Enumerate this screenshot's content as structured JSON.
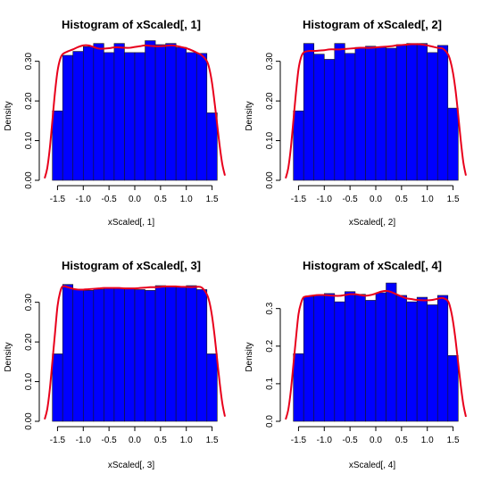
{
  "figure": {
    "background": "#ffffff"
  },
  "chart_data": [
    {
      "type": "bar",
      "title": "Histogram of xScaled[, 1]",
      "xlabel": "xScaled[, 1]",
      "ylabel": "Density",
      "xlim": [
        -1.75,
        1.75
      ],
      "ylim": [
        0,
        0.36
      ],
      "x_ticks": [
        -1.5,
        -1.0,
        -0.5,
        0.0,
        0.5,
        1.0,
        1.5
      ],
      "x_tick_labels": [
        "-1.5",
        "-1.0",
        "-0.5",
        "0.0",
        "0.5",
        "1.0",
        "1.5"
      ],
      "y_ticks": [
        0.0,
        0.1,
        0.2,
        0.3
      ],
      "y_tick_labels": [
        "0.00",
        "0.10",
        "0.20",
        "0.30"
      ],
      "bin_edges": [
        -1.6,
        -1.4,
        -1.2,
        -1.0,
        -0.8,
        -0.6,
        -0.4,
        -0.2,
        0.0,
        0.2,
        0.4,
        0.6,
        0.8,
        1.0,
        1.2,
        1.4,
        1.6
      ],
      "values": [
        0.175,
        0.315,
        0.325,
        0.337,
        0.345,
        0.322,
        0.345,
        0.322,
        0.322,
        0.352,
        0.342,
        0.345,
        0.335,
        0.322,
        0.32,
        0.17
      ],
      "density_line": {
        "x": [
          -1.75,
          -1.7,
          -1.65,
          -1.6,
          -1.55,
          -1.5,
          -1.45,
          -1.4,
          -1.3,
          -1.2,
          -1.1,
          -1.0,
          -0.9,
          -0.8,
          -0.7,
          -0.6,
          -0.5,
          -0.4,
          -0.3,
          -0.2,
          -0.1,
          0.0,
          0.1,
          0.2,
          0.3,
          0.4,
          0.5,
          0.6,
          0.7,
          0.8,
          0.9,
          1.0,
          1.1,
          1.2,
          1.3,
          1.4,
          1.45,
          1.5,
          1.55,
          1.6,
          1.65,
          1.7,
          1.75
        ],
        "y": [
          0.005,
          0.03,
          0.08,
          0.15,
          0.22,
          0.275,
          0.305,
          0.318,
          0.325,
          0.33,
          0.336,
          0.34,
          0.34,
          0.336,
          0.332,
          0.332,
          0.333,
          0.335,
          0.335,
          0.334,
          0.334,
          0.336,
          0.338,
          0.34,
          0.339,
          0.338,
          0.338,
          0.339,
          0.34,
          0.339,
          0.336,
          0.333,
          0.328,
          0.322,
          0.315,
          0.3,
          0.28,
          0.245,
          0.195,
          0.14,
          0.085,
          0.04,
          0.012
        ]
      },
      "bar_color": "#0000ff",
      "line_color": "#e8001c"
    },
    {
      "type": "bar",
      "title": "Histogram of xScaled[, 2]",
      "xlabel": "xScaled[, 2]",
      "ylabel": "Density",
      "xlim": [
        -1.75,
        1.75
      ],
      "ylim": [
        0,
        0.36
      ],
      "x_ticks": [
        -1.5,
        -1.0,
        -0.5,
        0.0,
        0.5,
        1.0,
        1.5
      ],
      "x_tick_labels": [
        "-1.5",
        "-1.0",
        "-0.5",
        "0.0",
        "0.5",
        "1.0",
        "1.5"
      ],
      "y_ticks": [
        0.0,
        0.1,
        0.2,
        0.3
      ],
      "y_tick_labels": [
        "0.00",
        "0.10",
        "0.20",
        "0.30"
      ],
      "bin_edges": [
        -1.6,
        -1.4,
        -1.2,
        -1.0,
        -0.8,
        -0.6,
        -0.4,
        -0.2,
        0.0,
        0.2,
        0.4,
        0.6,
        0.8,
        1.0,
        1.2,
        1.4,
        1.6
      ],
      "values": [
        0.175,
        0.345,
        0.318,
        0.305,
        0.345,
        0.32,
        0.335,
        0.338,
        0.335,
        0.333,
        0.342,
        0.345,
        0.345,
        0.322,
        0.34,
        0.182
      ],
      "density_line": {
        "x": [
          -1.75,
          -1.7,
          -1.65,
          -1.6,
          -1.55,
          -1.5,
          -1.45,
          -1.4,
          -1.3,
          -1.2,
          -1.1,
          -1.0,
          -0.9,
          -0.8,
          -0.7,
          -0.6,
          -0.5,
          -0.4,
          -0.3,
          -0.2,
          -0.1,
          0.0,
          0.1,
          0.2,
          0.3,
          0.4,
          0.5,
          0.6,
          0.7,
          0.8,
          0.9,
          1.0,
          1.1,
          1.2,
          1.3,
          1.4,
          1.45,
          1.5,
          1.55,
          1.6,
          1.65,
          1.7,
          1.75
        ],
        "y": [
          0.005,
          0.03,
          0.08,
          0.15,
          0.22,
          0.28,
          0.31,
          0.322,
          0.326,
          0.326,
          0.327,
          0.328,
          0.33,
          0.33,
          0.33,
          0.331,
          0.332,
          0.333,
          0.334,
          0.334,
          0.334,
          0.335,
          0.336,
          0.337,
          0.338,
          0.34,
          0.341,
          0.342,
          0.343,
          0.343,
          0.342,
          0.34,
          0.337,
          0.334,
          0.332,
          0.318,
          0.3,
          0.27,
          0.225,
          0.165,
          0.1,
          0.045,
          0.012
        ]
      },
      "bar_color": "#0000ff",
      "line_color": "#e8001c"
    },
    {
      "type": "bar",
      "title": "Histogram of xScaled[, 3]",
      "xlabel": "xScaled[, 3]",
      "ylabel": "Density",
      "xlim": [
        -1.75,
        1.75
      ],
      "ylim": [
        0,
        0.36
      ],
      "x_ticks": [
        -1.5,
        -1.0,
        -0.5,
        0.0,
        0.5,
        1.0,
        1.5
      ],
      "x_tick_labels": [
        "-1.5",
        "-1.0",
        "-0.5",
        "0.0",
        "0.5",
        "1.0",
        "1.5"
      ],
      "y_ticks": [
        0.0,
        0.1,
        0.2,
        0.3
      ],
      "y_tick_labels": [
        "0.00",
        "0.10",
        "0.20",
        "0.30"
      ],
      "bin_edges": [
        -1.6,
        -1.4,
        -1.2,
        -1.0,
        -0.8,
        -0.6,
        -0.4,
        -0.2,
        0.0,
        0.2,
        0.4,
        0.6,
        0.8,
        1.0,
        1.2,
        1.4,
        1.6
      ],
      "values": [
        0.17,
        0.345,
        0.332,
        0.33,
        0.333,
        0.336,
        0.336,
        0.336,
        0.332,
        0.33,
        0.342,
        0.34,
        0.338,
        0.342,
        0.332,
        0.17
      ],
      "density_line": {
        "x": [
          -1.75,
          -1.7,
          -1.65,
          -1.6,
          -1.55,
          -1.5,
          -1.45,
          -1.4,
          -1.3,
          -1.2,
          -1.1,
          -1.0,
          -0.9,
          -0.8,
          -0.7,
          -0.6,
          -0.5,
          -0.4,
          -0.3,
          -0.2,
          -0.1,
          0.0,
          0.1,
          0.2,
          0.3,
          0.4,
          0.5,
          0.6,
          0.7,
          0.8,
          0.9,
          1.0,
          1.1,
          1.2,
          1.3,
          1.4,
          1.45,
          1.5,
          1.55,
          1.6,
          1.65,
          1.7,
          1.75
        ],
        "y": [
          0.005,
          0.03,
          0.08,
          0.15,
          0.22,
          0.29,
          0.325,
          0.34,
          0.338,
          0.334,
          0.332,
          0.332,
          0.333,
          0.334,
          0.335,
          0.336,
          0.336,
          0.336,
          0.336,
          0.335,
          0.335,
          0.335,
          0.336,
          0.337,
          0.338,
          0.338,
          0.339,
          0.34,
          0.34,
          0.34,
          0.339,
          0.339,
          0.338,
          0.339,
          0.337,
          0.32,
          0.3,
          0.265,
          0.215,
          0.155,
          0.095,
          0.045,
          0.012
        ]
      },
      "bar_color": "#0000ff",
      "line_color": "#e8001c"
    },
    {
      "type": "bar",
      "title": "Histogram of xScaled[, 4]",
      "xlabel": "xScaled[, 4]",
      "ylabel": "Density",
      "xlim": [
        -1.75,
        1.75
      ],
      "ylim": [
        0,
        0.38
      ],
      "x_ticks": [
        -1.5,
        -1.0,
        -0.5,
        0.0,
        0.5,
        1.0,
        1.5
      ],
      "x_tick_labels": [
        "-1.5",
        "-1.0",
        "-0.5",
        "0.0",
        "0.5",
        "1.0",
        "1.5"
      ],
      "y_ticks": [
        0.0,
        0.1,
        0.2,
        0.3
      ],
      "y_tick_labels": [
        "0.0",
        "0.1",
        "0.2",
        "0.3"
      ],
      "bin_edges": [
        -1.6,
        -1.4,
        -1.2,
        -1.0,
        -0.8,
        -0.6,
        -0.4,
        -0.2,
        0.0,
        0.2,
        0.4,
        0.6,
        0.8,
        1.0,
        1.2,
        1.4,
        1.6
      ],
      "values": [
        0.18,
        0.332,
        0.335,
        0.34,
        0.318,
        0.345,
        0.338,
        0.322,
        0.342,
        0.368,
        0.335,
        0.318,
        0.33,
        0.31,
        0.335,
        0.175
      ],
      "density_line": {
        "x": [
          -1.75,
          -1.7,
          -1.65,
          -1.6,
          -1.55,
          -1.5,
          -1.45,
          -1.4,
          -1.3,
          -1.2,
          -1.1,
          -1.0,
          -0.9,
          -0.8,
          -0.7,
          -0.6,
          -0.5,
          -0.4,
          -0.3,
          -0.2,
          -0.1,
          0.0,
          0.1,
          0.2,
          0.3,
          0.4,
          0.5,
          0.6,
          0.7,
          0.8,
          0.9,
          1.0,
          1.1,
          1.2,
          1.3,
          1.4,
          1.45,
          1.5,
          1.55,
          1.6,
          1.65,
          1.7,
          1.75
        ],
        "y": [
          0.005,
          0.03,
          0.08,
          0.15,
          0.22,
          0.285,
          0.315,
          0.33,
          0.333,
          0.335,
          0.336,
          0.336,
          0.335,
          0.334,
          0.334,
          0.336,
          0.338,
          0.338,
          0.336,
          0.334,
          0.336,
          0.34,
          0.345,
          0.347,
          0.344,
          0.338,
          0.332,
          0.327,
          0.325,
          0.323,
          0.322,
          0.322,
          0.323,
          0.326,
          0.328,
          0.32,
          0.3,
          0.265,
          0.215,
          0.155,
          0.095,
          0.045,
          0.012
        ]
      },
      "bar_color": "#0000ff",
      "line_color": "#e8001c"
    }
  ]
}
